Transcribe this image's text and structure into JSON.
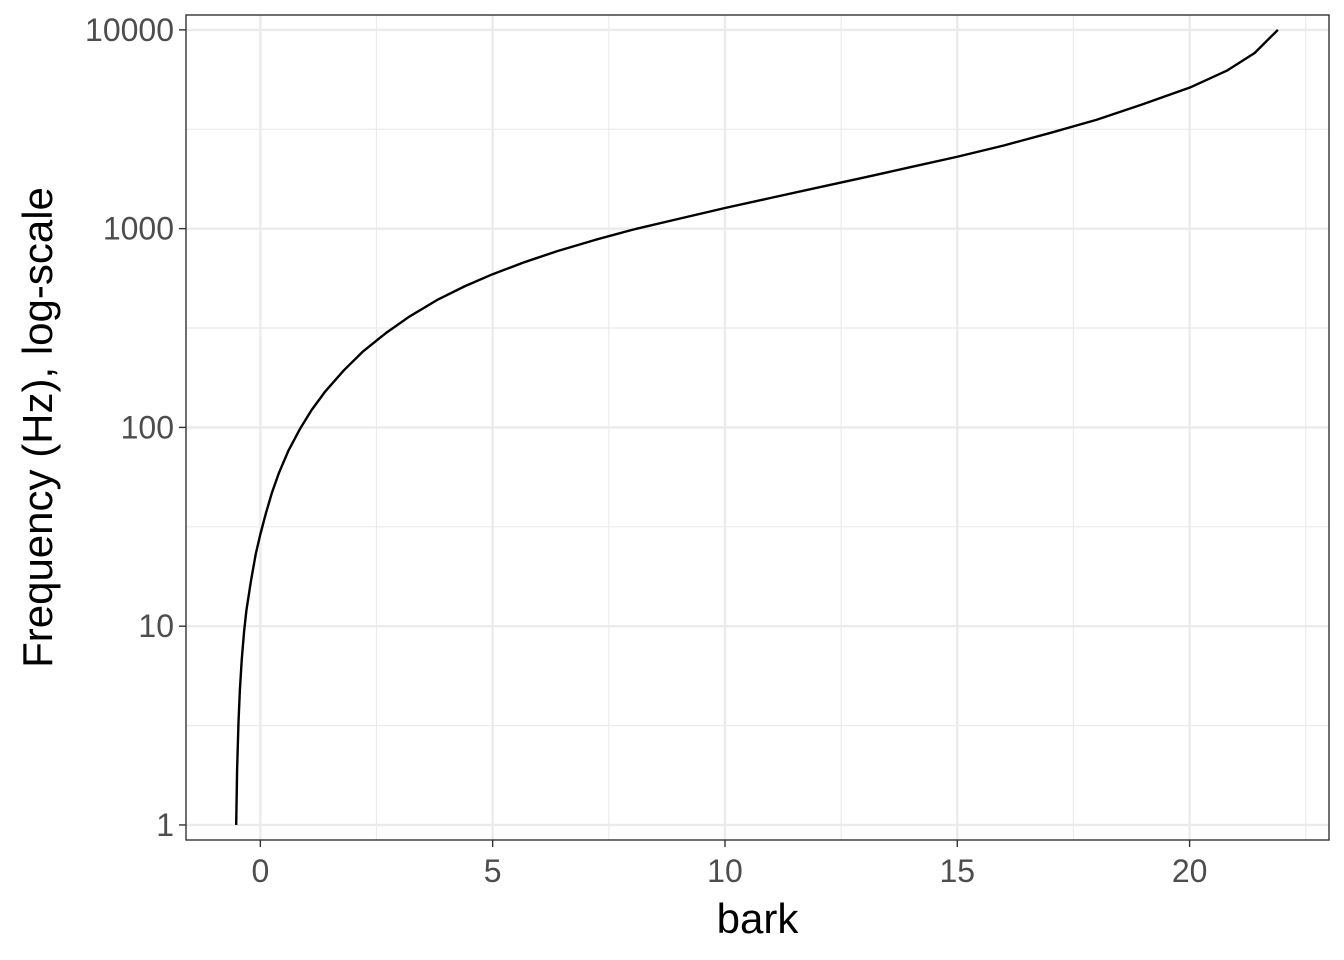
{
  "chart_data": {
    "type": "line",
    "title": "",
    "xlabel": "bark",
    "ylabel": "Frequency (Hz), log-scale",
    "xlim": [
      -1.6,
      23.0
    ],
    "ylim": [
      0.84,
      11880
    ],
    "y_scale": "log",
    "x_ticks": [
      0,
      5,
      10,
      15,
      20
    ],
    "x_tick_labels": [
      "0",
      "5",
      "10",
      "15",
      "20"
    ],
    "y_ticks": [
      1,
      10,
      100,
      1000,
      10000
    ],
    "y_tick_labels": [
      "1",
      "10",
      "100",
      "1000",
      "10000"
    ],
    "grid": true,
    "legend": "none",
    "series": [
      {
        "color": "#000000",
        "x": [
          -0.52,
          -0.5,
          -0.47,
          -0.44,
          -0.4,
          -0.35,
          -0.3,
          -0.2,
          -0.1,
          0,
          0.12,
          0.25,
          0.4,
          0.6,
          0.85,
          1.1,
          1.4,
          1.8,
          2.2,
          2.7,
          3.2,
          3.8,
          4.4,
          5.0,
          5.7,
          6.4,
          7.2,
          8.0,
          9.0,
          10.0,
          11.0,
          12.0,
          13.0,
          14.0,
          15.0,
          16.0,
          17.0,
          18.0,
          19.0,
          20.0,
          20.8,
          21.4,
          21.9
        ],
        "y": [
          1,
          1.9,
          3.3,
          4.8,
          6.8,
          9.4,
          12,
          17,
          23,
          29,
          37,
          47,
          59,
          76,
          98,
          122,
          152,
          194,
          240,
          298,
          360,
          437,
          513,
          590,
          680,
          772,
          877,
          986,
          1120,
          1270,
          1430,
          1610,
          1810,
          2040,
          2300,
          2620,
          3030,
          3530,
          4230,
          5120,
          6230,
          7650,
          10000
        ]
      }
    ]
  }
}
